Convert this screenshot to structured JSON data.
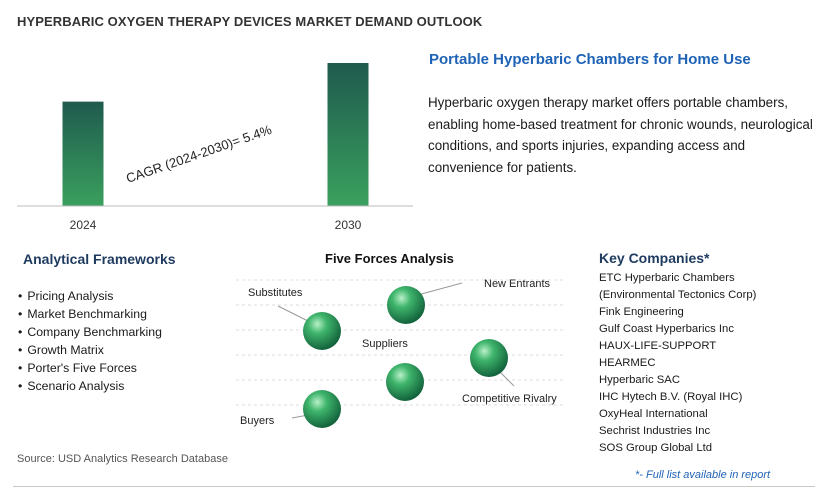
{
  "title": "HYPERBARIC OXYGEN THERAPY DEVICES MARKET DEMAND OUTLOOK",
  "chart_data": {
    "type": "bar",
    "categories": [
      "2024",
      "2030"
    ],
    "values": [
      1.0,
      1.37
    ],
    "annotation": "CAGR (2024-2030)=   5.4%",
    "colors": {
      "bar_top": "#1f5a4e",
      "bar_bottom": "#3aa05e"
    }
  },
  "subtitle": "Portable Hyperbaric Chambers for Home Use",
  "description": "Hyperbaric oxygen therapy market offers portable chambers, enabling home-based treatment for chronic wounds, neurological conditions, and sports injuries, expanding access and convenience for patients.",
  "frameworks": {
    "heading": "Analytical Frameworks",
    "items": [
      "Pricing Analysis",
      "Market Benchmarking",
      "Company Benchmarking",
      "Growth Matrix",
      "Porter's Five Forces",
      "Scenario Analysis"
    ]
  },
  "five_forces": {
    "heading": "Five Forces Analysis",
    "labels": {
      "substitutes": "Substitutes",
      "new_entrants": "New Entrants",
      "suppliers": "Suppliers",
      "competitive_rivalry": "Competitive Rivalry",
      "buyers": "Buyers"
    }
  },
  "companies": {
    "heading": "Key Companies*",
    "items": [
      "ETC Hyperbaric Chambers",
      "(Environmental Tectonics Corp)",
      "Fink Engineering",
      "Gulf Coast Hyperbarics Inc",
      "HAUX-LIFE-SUPPORT",
      "HEARMEC",
      "Hyperbaric SAC",
      "IHC Hytech B.V. (Royal IHC)",
      "OxyHeal International",
      "Sechrist Industries Inc",
      "SOS Group Global Ltd"
    ],
    "footnote": "*- Full list available in report"
  },
  "source": "Source: USD Analytics Research Database"
}
